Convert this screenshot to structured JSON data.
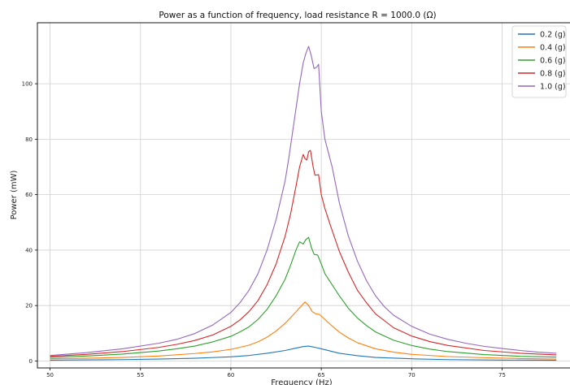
{
  "chart_data": {
    "type": "line",
    "title": "Power as a function of frequency, load resistance R = 1000.0 (Ω)",
    "xlabel": "Frequency (Hz)",
    "ylabel": "Power (mW)",
    "xlim": [
      49.3,
      78.8
    ],
    "ylim": [
      -2.5,
      122
    ],
    "xticks": [
      50,
      55,
      60,
      65,
      70,
      75
    ],
    "yticks": [
      0,
      20,
      40,
      60,
      80,
      100
    ],
    "grid": true,
    "legend_position": "top-right",
    "series": [
      {
        "name": "0.2 (g)",
        "color": "#1f77b4",
        "points": [
          [
            50,
            0.3
          ],
          [
            52,
            0.4
          ],
          [
            54,
            0.5
          ],
          [
            56,
            0.7
          ],
          [
            58,
            1.0
          ],
          [
            60,
            1.5
          ],
          [
            61,
            2.0
          ],
          [
            62,
            2.8
          ],
          [
            63,
            3.8
          ],
          [
            63.5,
            4.5
          ],
          [
            64,
            5.2
          ],
          [
            64.3,
            5.4
          ],
          [
            64.6,
            5.0
          ],
          [
            65,
            4.4
          ],
          [
            65.5,
            3.6
          ],
          [
            66,
            2.8
          ],
          [
            67,
            1.9
          ],
          [
            68,
            1.3
          ],
          [
            70,
            0.8
          ],
          [
            72,
            0.5
          ],
          [
            75,
            0.35
          ],
          [
            78,
            0.25
          ]
        ]
      },
      {
        "name": "0.4 (g)",
        "color": "#ff7f0e",
        "points": [
          [
            50,
            0.8
          ],
          [
            52,
            1.0
          ],
          [
            54,
            1.3
          ],
          [
            56,
            1.8
          ],
          [
            58,
            2.7
          ],
          [
            59,
            3.3
          ],
          [
            60,
            4.2
          ],
          [
            61,
            5.7
          ],
          [
            61.5,
            6.9
          ],
          [
            62,
            8.6
          ],
          [
            62.5,
            10.8
          ],
          [
            63,
            13.6
          ],
          [
            63.5,
            17.0
          ],
          [
            64,
            20.6
          ],
          [
            64.1,
            21.3
          ],
          [
            64.3,
            20.0
          ],
          [
            64.5,
            17.8
          ],
          [
            64.7,
            17.0
          ],
          [
            64.9,
            16.8
          ],
          [
            65.2,
            15.0
          ],
          [
            65.6,
            12.6
          ],
          [
            66,
            10.4
          ],
          [
            66.5,
            8.3
          ],
          [
            67,
            6.6
          ],
          [
            68,
            4.4
          ],
          [
            69,
            3.2
          ],
          [
            70,
            2.4
          ],
          [
            72,
            1.6
          ],
          [
            74,
            1.2
          ],
          [
            76,
            0.9
          ],
          [
            78,
            0.7
          ]
        ]
      },
      {
        "name": "0.6 (g)",
        "color": "#2ca02c",
        "points": [
          [
            50,
            1.3
          ],
          [
            52,
            1.8
          ],
          [
            54,
            2.5
          ],
          [
            56,
            3.6
          ],
          [
            57,
            4.4
          ],
          [
            58,
            5.4
          ],
          [
            59,
            6.9
          ],
          [
            60,
            8.9
          ],
          [
            60.5,
            10.5
          ],
          [
            61,
            12.3
          ],
          [
            61.5,
            15.0
          ],
          [
            62,
            18.6
          ],
          [
            62.5,
            23.5
          ],
          [
            63,
            29.5
          ],
          [
            63.3,
            34.5
          ],
          [
            63.6,
            40.0
          ],
          [
            63.8,
            43.0
          ],
          [
            64,
            42.2
          ],
          [
            64.15,
            43.8
          ],
          [
            64.3,
            44.6
          ],
          [
            64.45,
            41.0
          ],
          [
            64.6,
            38.5
          ],
          [
            64.8,
            38.2
          ],
          [
            65,
            35.0
          ],
          [
            65.2,
            31.5
          ],
          [
            65.5,
            28.5
          ],
          [
            66,
            23.5
          ],
          [
            66.5,
            19.0
          ],
          [
            67,
            15.5
          ],
          [
            67.5,
            12.8
          ],
          [
            68,
            10.5
          ],
          [
            69,
            7.5
          ],
          [
            70,
            5.6
          ],
          [
            71,
            4.3
          ],
          [
            72,
            3.4
          ],
          [
            74,
            2.3
          ],
          [
            76,
            1.7
          ],
          [
            78,
            1.4
          ]
        ]
      },
      {
        "name": "0.8 (g)",
        "color": "#d62728",
        "points": [
          [
            50,
            1.7
          ],
          [
            52,
            2.4
          ],
          [
            54,
            3.4
          ],
          [
            56,
            4.9
          ],
          [
            57,
            6.0
          ],
          [
            58,
            7.4
          ],
          [
            59,
            9.4
          ],
          [
            60,
            12.5
          ],
          [
            60.5,
            14.8
          ],
          [
            61,
            17.8
          ],
          [
            61.5,
            21.8
          ],
          [
            62,
            27.5
          ],
          [
            62.5,
            35.0
          ],
          [
            63,
            45.0
          ],
          [
            63.3,
            53.0
          ],
          [
            63.6,
            63.0
          ],
          [
            63.8,
            70.0
          ],
          [
            64,
            74.5
          ],
          [
            64.1,
            73.0
          ],
          [
            64.2,
            72.5
          ],
          [
            64.3,
            75.5
          ],
          [
            64.4,
            76.0
          ],
          [
            64.55,
            70.0
          ],
          [
            64.65,
            67.0
          ],
          [
            64.85,
            67.2
          ],
          [
            65,
            60.0
          ],
          [
            65.2,
            55.0
          ],
          [
            65.5,
            49.0
          ],
          [
            66,
            39.5
          ],
          [
            66.5,
            32.0
          ],
          [
            67,
            25.5
          ],
          [
            67.5,
            21.0
          ],
          [
            68,
            17.0
          ],
          [
            69,
            12.0
          ],
          [
            70,
            9.0
          ],
          [
            71,
            7.0
          ],
          [
            72,
            5.6
          ],
          [
            74,
            3.8
          ],
          [
            76,
            2.8
          ],
          [
            78,
            2.2
          ]
        ]
      },
      {
        "name": "1.0 (g)",
        "color": "#9467bd",
        "points": [
          [
            50,
            2.0
          ],
          [
            52,
            3.0
          ],
          [
            54,
            4.4
          ],
          [
            56,
            6.4
          ],
          [
            57,
            7.8
          ],
          [
            58,
            9.9
          ],
          [
            59,
            13.0
          ],
          [
            60,
            17.5
          ],
          [
            60.5,
            21.0
          ],
          [
            61,
            25.5
          ],
          [
            61.5,
            31.5
          ],
          [
            62,
            40.0
          ],
          [
            62.5,
            51.0
          ],
          [
            63,
            65.0
          ],
          [
            63.2,
            73.0
          ],
          [
            63.4,
            82.0
          ],
          [
            63.6,
            91.0
          ],
          [
            63.8,
            100.0
          ],
          [
            64,
            107.5
          ],
          [
            64.15,
            111.0
          ],
          [
            64.3,
            113.5
          ],
          [
            64.45,
            110.0
          ],
          [
            64.6,
            105.5
          ],
          [
            64.75,
            106.0
          ],
          [
            64.85,
            107.0
          ],
          [
            65,
            90.0
          ],
          [
            65.2,
            80.0
          ],
          [
            65.4,
            75.0
          ],
          [
            65.6,
            70.0
          ],
          [
            66,
            57.0
          ],
          [
            66.5,
            45.0
          ],
          [
            67,
            36.0
          ],
          [
            67.5,
            29.0
          ],
          [
            68,
            23.5
          ],
          [
            68.5,
            19.5
          ],
          [
            69,
            16.5
          ],
          [
            70,
            12.5
          ],
          [
            71,
            9.7
          ],
          [
            72,
            7.8
          ],
          [
            73,
            6.4
          ],
          [
            74,
            5.3
          ],
          [
            75,
            4.5
          ],
          [
            76,
            3.8
          ],
          [
            77,
            3.2
          ],
          [
            78,
            2.8
          ]
        ]
      }
    ]
  }
}
